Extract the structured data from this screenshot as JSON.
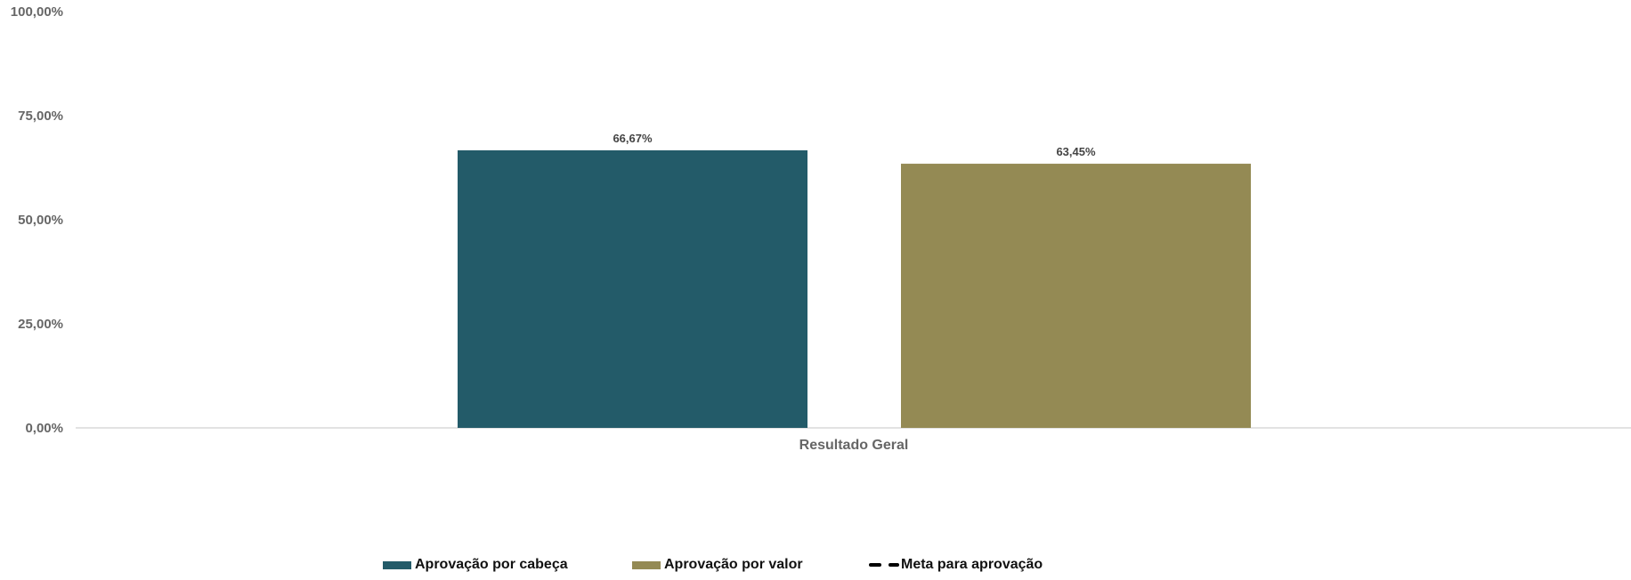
{
  "chart_data": {
    "type": "bar",
    "categories": [
      "Resultado Geral"
    ],
    "series": [
      {
        "name": "Aprovação por cabeça",
        "values": [
          66.67
        ],
        "color": "#235B69",
        "label": "66,67%"
      },
      {
        "name": "Aprovação por valor",
        "values": [
          63.45
        ],
        "color": "#948A54",
        "label": "63,45%"
      }
    ],
    "line_series": {
      "name": "Meta para aprovação",
      "color": "#000000"
    },
    "ylim": [
      0,
      100
    ],
    "yticks": [
      0,
      25,
      50,
      75,
      100
    ],
    "ytick_labels": [
      "0,00%",
      "25,00%",
      "50,00%",
      "75,00%",
      "100,00%"
    ],
    "grid": false,
    "legend_position": "bottom"
  }
}
